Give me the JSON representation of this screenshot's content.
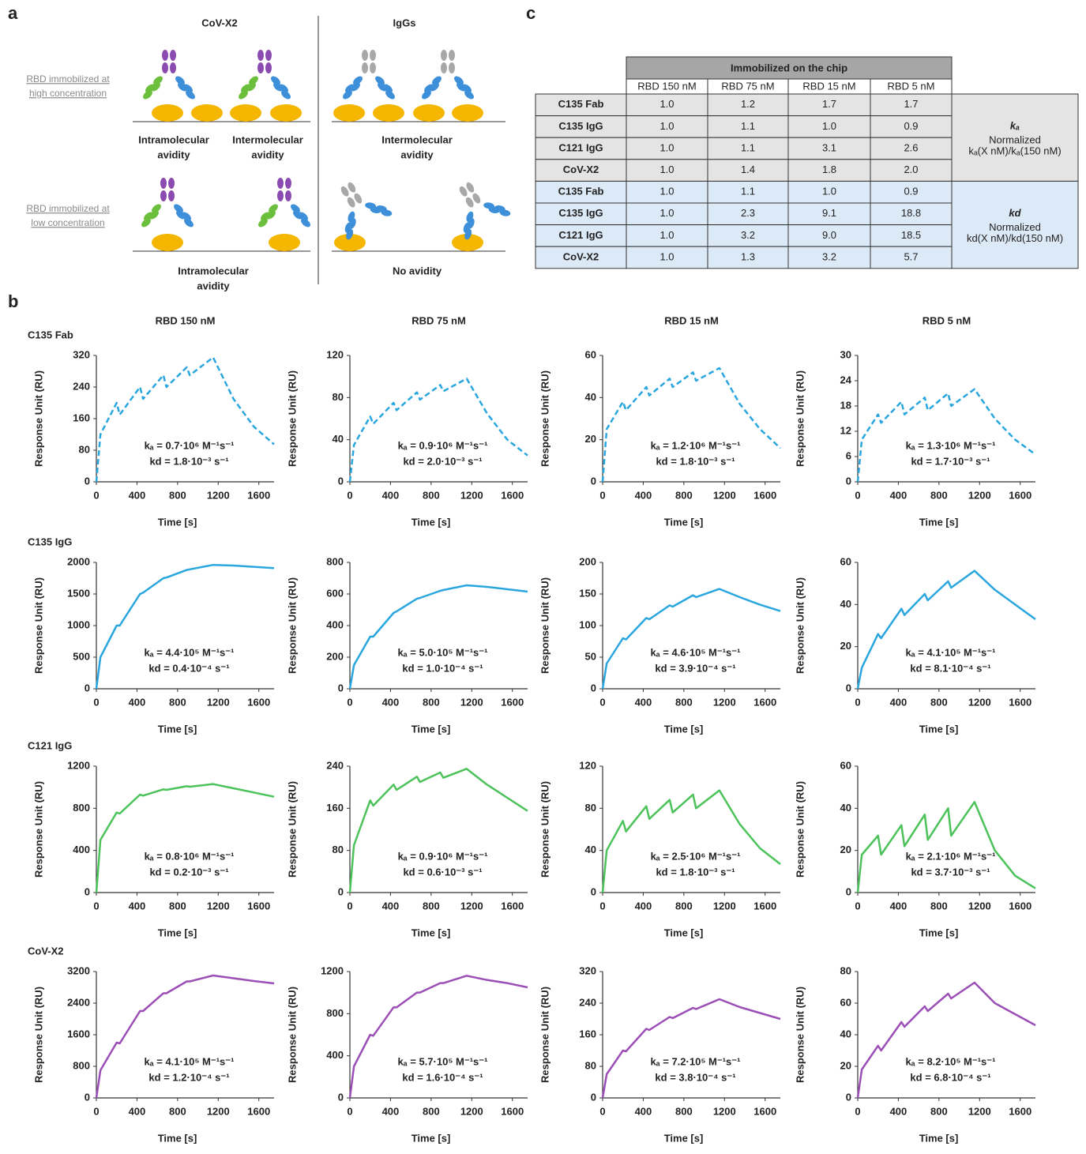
{
  "panel_a": {
    "label": "a",
    "left_title": "CoV-X2",
    "right_title": "IgGs",
    "high_label": [
      "RBD immobilized at",
      "high concentration"
    ],
    "low_label": [
      "RBD immobilized at",
      "low concentration"
    ],
    "captions": [
      [
        "Intramolecular",
        "avidity"
      ],
      [
        "Intermolecular",
        "avidity"
      ],
      [
        "Intermolecular",
        "avidity"
      ],
      [
        "Intramolecular",
        "avidity"
      ],
      [
        "No avidity"
      ]
    ]
  },
  "table": {
    "label": "c",
    "header": "Immobilized on the chip",
    "columns": [
      "RBD 150 nM",
      "RBD 75 nM",
      "RBD 15 nM",
      "RBD 5 nM"
    ],
    "rows": [
      [
        "C135 Fab",
        "1.0",
        "1.2",
        "1.7",
        "1.7"
      ],
      [
        "C135 IgG",
        "1.0",
        "1.1",
        "1.0",
        "0.9"
      ],
      [
        "C121 IgG",
        "1.0",
        "1.1",
        "3.1",
        "2.6"
      ],
      [
        "CoV-X2",
        "1.0",
        "1.4",
        "1.8",
        "2.0"
      ],
      [
        "C135 Fab",
        "1.0",
        "1.1",
        "1.0",
        "0.9"
      ],
      [
        "C135 IgG",
        "1.0",
        "2.3",
        "9.1",
        "18.8"
      ],
      [
        "C121 IgG",
        "1.0",
        "3.2",
        "9.0",
        "18.5"
      ],
      [
        "CoV-X2",
        "1.0",
        "1.3",
        "3.2",
        "5.7"
      ]
    ],
    "groups": [
      {
        "symbol": "kₐ",
        "note": "Normalized",
        "formula": "kₐ(X nM)/kₐ(150 nM)"
      },
      {
        "symbol": "kd",
        "note": "Normalized",
        "formula": "kd(X nM)/kd(150 nM)"
      }
    ]
  },
  "panel_b": {
    "label": "b",
    "columns": [
      "RBD 150 nM",
      "RBD 75 nM",
      "RBD 15 nM",
      "RBD 5 nM"
    ],
    "rows": [
      "C135 Fab",
      "C135 IgG",
      "C121 IgG",
      "CoV-X2"
    ]
  },
  "chart_data": [
    {
      "type": "line",
      "line_style": "dashed",
      "x_label": "Time [s]",
      "y_label": "Response Unit (RU)",
      "xlim": [
        0,
        1750
      ],
      "xticks": [
        0,
        400,
        800,
        1200,
        1600
      ],
      "ylim": [
        0,
        320
      ],
      "yticks": [
        0,
        80,
        160,
        240,
        320
      ],
      "x": [
        0,
        40,
        200,
        230,
        430,
        460,
        660,
        690,
        890,
        920,
        1150,
        1350,
        1550,
        1750
      ],
      "series": [
        {
          "color": "#2aa6df",
          "values": [
            0,
            120,
            200,
            170,
            240,
            210,
            270,
            240,
            290,
            270,
            315,
            210,
            140,
            95
          ]
        }
      ],
      "annotations": [
        "kₐ = 0.7·10⁶ M⁻¹s⁻¹",
        "kd = 1.8·10⁻³ s⁻¹"
      ]
    },
    {
      "type": "line",
      "line_style": "dashed",
      "x_label": "Time [s]",
      "y_label": "Response Unit (RU)",
      "xlim": [
        0,
        1750
      ],
      "xticks": [
        0,
        400,
        800,
        1200,
        1600
      ],
      "ylim": [
        0,
        120
      ],
      "yticks": [
        0,
        40,
        80,
        120
      ],
      "x": [
        0,
        40,
        200,
        230,
        430,
        460,
        660,
        690,
        890,
        920,
        1150,
        1350,
        1550,
        1750
      ],
      "series": [
        {
          "color": "#2aa6df",
          "values": [
            0,
            35,
            62,
            55,
            75,
            68,
            85,
            78,
            92,
            86,
            98,
            65,
            40,
            25
          ]
        }
      ],
      "annotations": [
        "kₐ = 0.9·10⁶ M⁻¹s⁻¹",
        "kd = 2.0·10⁻³ s⁻¹"
      ]
    },
    {
      "type": "line",
      "line_style": "dashed",
      "x_label": "Time [s]",
      "y_label": "Response Unit (RU)",
      "xlim": [
        0,
        1750
      ],
      "xticks": [
        0,
        400,
        800,
        1200,
        1600
      ],
      "ylim": [
        0,
        60
      ],
      "yticks": [
        0,
        20,
        40,
        60
      ],
      "x": [
        0,
        40,
        200,
        230,
        430,
        460,
        660,
        690,
        890,
        920,
        1150,
        1350,
        1550,
        1750
      ],
      "series": [
        {
          "color": "#2aa6df",
          "values": [
            0,
            25,
            38,
            34,
            45,
            41,
            49,
            45,
            52,
            48,
            54,
            37,
            25,
            16
          ]
        }
      ],
      "annotations": [
        "kₐ = 1.2·10⁶ M⁻¹s⁻¹",
        "kd = 1.8·10⁻³ s⁻¹"
      ]
    },
    {
      "type": "line",
      "line_style": "dashed",
      "x_label": "Time [s]",
      "y_label": "Response Unit (RU)",
      "xlim": [
        0,
        1750
      ],
      "xticks": [
        0,
        400,
        800,
        1200,
        1600
      ],
      "ylim": [
        0,
        30
      ],
      "yticks": [
        0,
        6,
        12,
        18,
        24,
        30
      ],
      "x": [
        0,
        40,
        200,
        230,
        430,
        460,
        660,
        690,
        890,
        920,
        1150,
        1350,
        1550,
        1750
      ],
      "series": [
        {
          "color": "#2aa6df",
          "values": [
            0,
            10,
            16,
            14,
            19,
            16,
            20,
            17,
            21,
            18,
            22,
            15,
            10,
            6.5
          ]
        }
      ],
      "annotations": [
        "kₐ = 1.3·10⁶ M⁻¹s⁻¹",
        "kd = 1.7·10⁻³ s⁻¹"
      ]
    },
    {
      "type": "line",
      "x_label": "Time [s]",
      "y_label": "Response Unit (RU)",
      "xlim": [
        0,
        1750
      ],
      "xticks": [
        0,
        400,
        800,
        1200,
        1600
      ],
      "ylim": [
        0,
        2000
      ],
      "yticks": [
        0,
        500,
        1000,
        1500,
        2000
      ],
      "x": [
        0,
        40,
        200,
        230,
        430,
        460,
        660,
        690,
        890,
        920,
        1150,
        1350,
        1550,
        1750
      ],
      "series": [
        {
          "color": "#2aa6df",
          "values": [
            0,
            500,
            1000,
            1000,
            1500,
            1520,
            1750,
            1760,
            1880,
            1890,
            1960,
            1950,
            1930,
            1910
          ]
        }
      ],
      "annotations": [
        "kₐ = 4.4·10⁵ M⁻¹s⁻¹",
        "kd = 0.4·10⁻⁴ s⁻¹"
      ]
    },
    {
      "type": "line",
      "x_label": "Time [s]",
      "y_label": "Response Unit (RU)",
      "xlim": [
        0,
        1750
      ],
      "xticks": [
        0,
        400,
        800,
        1200,
        1600
      ],
      "ylim": [
        0,
        800
      ],
      "yticks": [
        0,
        200,
        400,
        600,
        800
      ],
      "x": [
        0,
        40,
        200,
        230,
        430,
        460,
        660,
        690,
        890,
        920,
        1150,
        1350,
        1550,
        1750
      ],
      "series": [
        {
          "color": "#2aa6df",
          "values": [
            0,
            150,
            330,
            330,
            480,
            490,
            570,
            575,
            620,
            625,
            655,
            645,
            630,
            615
          ]
        }
      ],
      "annotations": [
        "kₐ = 5.0·10⁵ M⁻¹s⁻¹",
        "kd = 1.0·10⁻⁴ s⁻¹"
      ]
    },
    {
      "type": "line",
      "x_label": "Time [s]",
      "y_label": "Response Unit (RU)",
      "xlim": [
        0,
        1750
      ],
      "xticks": [
        0,
        400,
        800,
        1200,
        1600
      ],
      "ylim": [
        0,
        200
      ],
      "yticks": [
        0,
        50,
        100,
        150,
        200
      ],
      "x": [
        0,
        40,
        200,
        230,
        430,
        460,
        660,
        690,
        890,
        920,
        1150,
        1350,
        1550,
        1750
      ],
      "series": [
        {
          "color": "#2aa6df",
          "values": [
            0,
            40,
            80,
            78,
            112,
            110,
            132,
            130,
            148,
            145,
            158,
            145,
            133,
            123
          ]
        }
      ],
      "annotations": [
        "kₐ = 4.6·10⁵ M⁻¹s⁻¹",
        "kd = 3.9·10⁻⁴ s⁻¹"
      ]
    },
    {
      "type": "line",
      "x_label": "Time [s]",
      "y_label": "Response Unit (RU)",
      "xlim": [
        0,
        1750
      ],
      "xticks": [
        0,
        400,
        800,
        1200,
        1600
      ],
      "ylim": [
        0,
        60
      ],
      "yticks": [
        0,
        20,
        40,
        60
      ],
      "x": [
        0,
        40,
        200,
        230,
        430,
        460,
        660,
        690,
        890,
        920,
        1150,
        1350,
        1550,
        1750
      ],
      "series": [
        {
          "color": "#2aa6df",
          "values": [
            0,
            10,
            26,
            24,
            38,
            35,
            45,
            42,
            51,
            48,
            56,
            47,
            40,
            33
          ]
        }
      ],
      "annotations": [
        "kₐ = 4.1·10⁵ M⁻¹s⁻¹",
        "kd = 8.1·10⁻⁴ s⁻¹"
      ]
    },
    {
      "type": "line",
      "x_label": "Time [s]",
      "y_label": "Response Unit (RU)",
      "xlim": [
        0,
        1750
      ],
      "xticks": [
        0,
        400,
        800,
        1200,
        1600
      ],
      "ylim": [
        0,
        1200
      ],
      "yticks": [
        0,
        400,
        800,
        1200
      ],
      "x": [
        0,
        40,
        200,
        230,
        430,
        460,
        660,
        690,
        890,
        920,
        1150,
        1350,
        1550,
        1750
      ],
      "series": [
        {
          "color": "#4cc25a",
          "values": [
            0,
            500,
            760,
            750,
            930,
            920,
            980,
            975,
            1010,
            1005,
            1030,
            990,
            950,
            910
          ]
        }
      ],
      "annotations": [
        "kₐ = 0.8·10⁶ M⁻¹s⁻¹",
        "kd = 0.2·10⁻³ s⁻¹"
      ]
    },
    {
      "type": "line",
      "x_label": "Time [s]",
      "y_label": "Response Unit (RU)",
      "xlim": [
        0,
        1750
      ],
      "xticks": [
        0,
        400,
        800,
        1200,
        1600
      ],
      "ylim": [
        0,
        240
      ],
      "yticks": [
        0,
        80,
        160,
        240
      ],
      "x": [
        0,
        40,
        200,
        230,
        430,
        460,
        660,
        690,
        890,
        920,
        1150,
        1350,
        1550,
        1750
      ],
      "series": [
        {
          "color": "#4cc25a",
          "values": [
            0,
            90,
            175,
            165,
            205,
            195,
            220,
            210,
            228,
            218,
            235,
            205,
            180,
            155
          ]
        }
      ],
      "annotations": [
        "kₐ = 0.9·10⁶ M⁻¹s⁻¹",
        "kd = 0.6·10⁻³ s⁻¹"
      ]
    },
    {
      "type": "line",
      "x_label": "Time [s]",
      "y_label": "Response Unit (RU)",
      "xlim": [
        0,
        1750
      ],
      "xticks": [
        0,
        400,
        800,
        1200,
        1600
      ],
      "ylim": [
        0,
        120
      ],
      "yticks": [
        0,
        40,
        80,
        120
      ],
      "x": [
        0,
        40,
        200,
        230,
        430,
        460,
        660,
        690,
        890,
        920,
        1150,
        1350,
        1550,
        1750
      ],
      "series": [
        {
          "color": "#4cc25a",
          "values": [
            0,
            40,
            68,
            58,
            82,
            70,
            88,
            76,
            93,
            80,
            97,
            65,
            42,
            27
          ]
        }
      ],
      "annotations": [
        "kₐ = 2.5·10⁶ M⁻¹s⁻¹",
        "kd = 1.8·10⁻³ s⁻¹"
      ]
    },
    {
      "type": "line",
      "x_label": "Time [s]",
      "y_label": "Response Unit (RU)",
      "xlim": [
        0,
        1750
      ],
      "xticks": [
        0,
        400,
        800,
        1200,
        1600
      ],
      "ylim": [
        0,
        60
      ],
      "yticks": [
        0,
        20,
        40,
        60
      ],
      "x": [
        0,
        40,
        200,
        230,
        430,
        460,
        660,
        690,
        890,
        920,
        1150,
        1350,
        1550,
        1750
      ],
      "series": [
        {
          "color": "#4cc25a",
          "values": [
            0,
            18,
            27,
            18,
            32,
            22,
            37,
            25,
            40,
            27,
            43,
            20,
            8,
            2
          ]
        }
      ],
      "annotations": [
        "kₐ = 2.1·10⁶ M⁻¹s⁻¹",
        "kd = 3.7·10⁻³ s⁻¹"
      ]
    },
    {
      "type": "line",
      "x_label": "Time [s]",
      "y_label": "Response Unit (RU)",
      "xlim": [
        0,
        1750
      ],
      "xticks": [
        0,
        400,
        800,
        1200,
        1600
      ],
      "ylim": [
        0,
        3200
      ],
      "yticks": [
        0,
        800,
        1600,
        2400,
        3200
      ],
      "x": [
        0,
        40,
        200,
        230,
        430,
        460,
        660,
        690,
        890,
        920,
        1150,
        1350,
        1550,
        1750
      ],
      "series": [
        {
          "color": "#9b4fb6",
          "values": [
            0,
            700,
            1400,
            1380,
            2200,
            2200,
            2650,
            2650,
            2950,
            2950,
            3100,
            3030,
            2960,
            2900
          ]
        }
      ],
      "annotations": [
        "kₐ = 4.1·10⁵ M⁻¹s⁻¹",
        "kd = 1.2·10⁻⁴ s⁻¹"
      ]
    },
    {
      "type": "line",
      "x_label": "Time [s]",
      "y_label": "Response Unit (RU)",
      "xlim": [
        0,
        1750
      ],
      "xticks": [
        0,
        400,
        800,
        1200,
        1600
      ],
      "ylim": [
        0,
        1200
      ],
      "yticks": [
        0,
        400,
        800,
        1200
      ],
      "x": [
        0,
        40,
        200,
        230,
        430,
        460,
        660,
        690,
        890,
        920,
        1150,
        1350,
        1550,
        1750
      ],
      "series": [
        {
          "color": "#9b4fb6",
          "values": [
            0,
            300,
            600,
            590,
            860,
            860,
            1000,
            1000,
            1090,
            1090,
            1160,
            1120,
            1090,
            1050
          ]
        }
      ],
      "annotations": [
        "kₐ = 5.7·10⁵ M⁻¹s⁻¹",
        "kd = 1.6·10⁻⁴ s⁻¹"
      ]
    },
    {
      "type": "line",
      "x_label": "Time [s]",
      "y_label": "Response Unit (RU)",
      "xlim": [
        0,
        1750
      ],
      "xticks": [
        0,
        400,
        800,
        1200,
        1600
      ],
      "ylim": [
        0,
        320
      ],
      "yticks": [
        0,
        80,
        160,
        240,
        320
      ],
      "x": [
        0,
        40,
        200,
        230,
        430,
        460,
        660,
        690,
        890,
        920,
        1150,
        1350,
        1550,
        1750
      ],
      "series": [
        {
          "color": "#9b4fb6",
          "values": [
            0,
            60,
            120,
            118,
            175,
            172,
            205,
            202,
            228,
            225,
            250,
            230,
            215,
            200
          ]
        }
      ],
      "annotations": [
        "kₐ = 7.2·10⁵ M⁻¹s⁻¹",
        "kd = 3.8·10⁻⁴ s⁻¹"
      ]
    },
    {
      "type": "line",
      "x_label": "Time [s]",
      "y_label": "Response Unit (RU)",
      "xlim": [
        0,
        1750
      ],
      "xticks": [
        0,
        400,
        800,
        1200,
        1600
      ],
      "ylim": [
        0,
        80
      ],
      "yticks": [
        0,
        20,
        40,
        60,
        80
      ],
      "x": [
        0,
        40,
        200,
        230,
        430,
        460,
        660,
        690,
        890,
        920,
        1150,
        1350,
        1550,
        1750
      ],
      "series": [
        {
          "color": "#9b4fb6",
          "values": [
            0,
            18,
            33,
            30,
            48,
            45,
            58,
            55,
            66,
            63,
            73,
            60,
            53,
            46
          ]
        }
      ],
      "annotations": [
        "kₐ = 8.2·10⁵ M⁻¹s⁻¹",
        "kd = 6.8·10⁻⁴ s⁻¹"
      ]
    }
  ]
}
